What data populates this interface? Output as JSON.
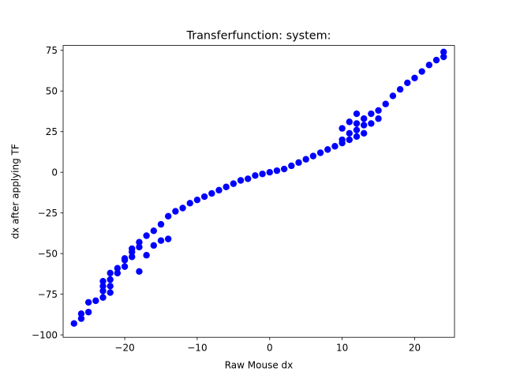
{
  "chart_data": {
    "type": "scatter",
    "title": "Transferfunction: system:",
    "xlabel": "Raw Mouse dx",
    "ylabel": "dx after applying TF",
    "xlim": [
      -28.5,
      25.5
    ],
    "ylim": [
      -101.5,
      78.0
    ],
    "xticks": [
      -20,
      -10,
      0,
      10,
      20
    ],
    "xtick_labels": [
      "−20",
      "−10",
      "0",
      "10",
      "20"
    ],
    "yticks": [
      -100,
      -75,
      -50,
      -25,
      0,
      25,
      50,
      75
    ],
    "ytick_labels": [
      "−100",
      "−75",
      "−50",
      "−25",
      "0",
      "25",
      "50",
      "75"
    ],
    "grid": false,
    "marker_color": "#0000ff",
    "series": [
      {
        "x": [
          -27,
          -26,
          -26,
          -25,
          -25,
          -24,
          -23,
          -23,
          -23,
          -23,
          -22,
          -22,
          -22,
          -22,
          -21,
          -21,
          -20,
          -20,
          -20,
          -19,
          -19,
          -19,
          -18,
          -18,
          -18,
          -17,
          -17,
          -16,
          -16,
          -15,
          -15,
          -14,
          -14,
          -13,
          -12,
          -11,
          -10,
          -9,
          -8,
          -7,
          -6,
          -5,
          -4,
          -3,
          -2,
          -1,
          0,
          1,
          2,
          3,
          4,
          5,
          6,
          7,
          8,
          9,
          10,
          10,
          10,
          11,
          11,
          11,
          12,
          12,
          12,
          12,
          13,
          13,
          13,
          14,
          14,
          15,
          15,
          16,
          17,
          18,
          19,
          20,
          21,
          22,
          23,
          24,
          24
        ],
        "y": [
          -93,
          -90,
          -87,
          -86,
          -80,
          -79,
          -77,
          -73,
          -70,
          -67,
          -74,
          -70,
          -66,
          -62,
          -62,
          -59,
          -58,
          -54,
          -53,
          -52,
          -49,
          -47,
          -61,
          -46,
          -43,
          -51,
          -39,
          -45,
          -36,
          -42,
          -32,
          -41,
          -27,
          -24,
          -22,
          -19,
          -17,
          -15,
          -13,
          -11,
          -9,
          -7,
          -5,
          -4,
          -2,
          -1,
          0,
          1,
          2,
          4,
          6,
          8,
          10,
          12,
          14,
          16,
          18,
          20,
          27,
          20,
          24,
          31,
          22,
          26,
          30,
          36,
          24,
          29,
          33,
          30,
          36,
          33,
          38,
          42,
          47,
          51,
          55,
          58,
          62,
          66,
          69,
          71,
          74
        ]
      }
    ]
  }
}
